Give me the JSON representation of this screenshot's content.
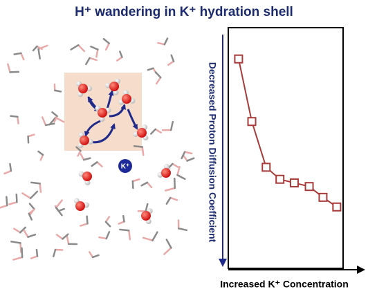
{
  "title": "H⁺ wandering in K⁺ hydration shell",
  "ion_label": "K⁺",
  "chart_data": {
    "type": "line",
    "x_label": "Increased K⁺ Concentration",
    "y_label": "Decreased Proton Diffusion Coefficient",
    "x": [
      9,
      20.5,
      33,
      45,
      57.5,
      70.5,
      82.5,
      94.5
    ],
    "values": [
      87,
      61,
      42,
      37,
      35.5,
      34,
      29.5,
      25.5
    ],
    "color": "#a83a3a",
    "xlim": [
      0,
      100
    ],
    "ylim": [
      0,
      100
    ]
  }
}
